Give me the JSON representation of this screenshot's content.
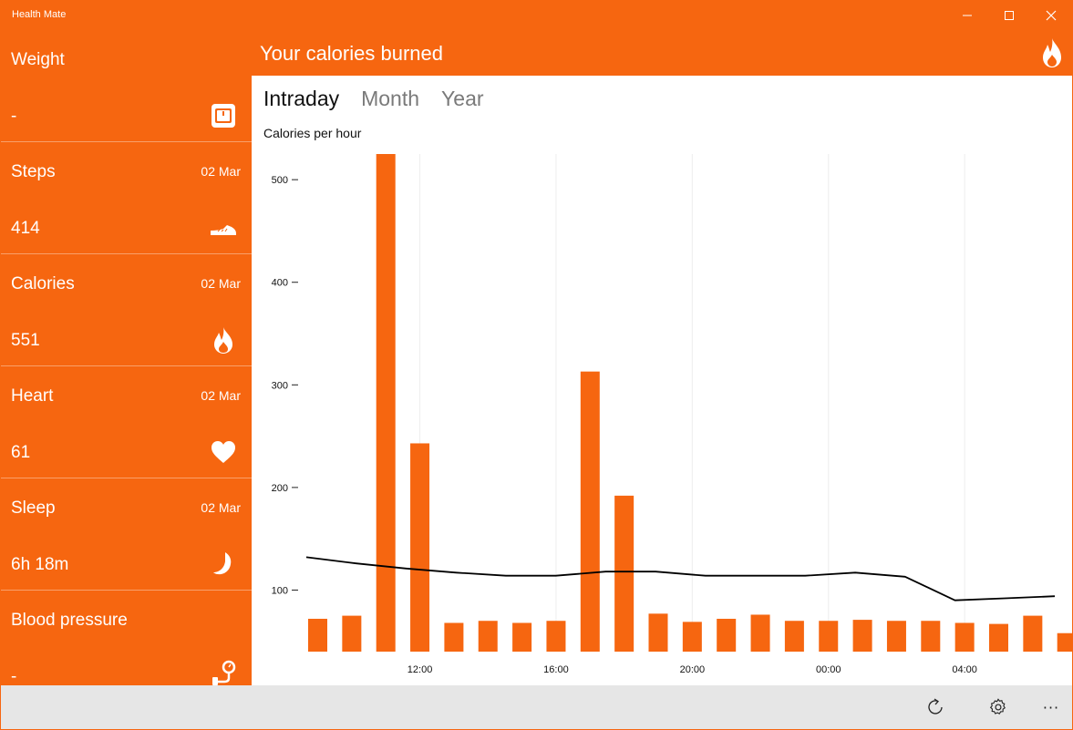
{
  "window": {
    "title": "Health Mate"
  },
  "sidebar": {
    "tiles": [
      {
        "key": "weight",
        "title": "Weight",
        "date": "",
        "value": "-",
        "icon": "scale-icon"
      },
      {
        "key": "steps",
        "title": "Steps",
        "date": "02 Mar",
        "value": "414",
        "icon": "shoe-icon"
      },
      {
        "key": "calories",
        "title": "Calories",
        "date": "02 Mar",
        "value": "551",
        "icon": "flame-icon"
      },
      {
        "key": "heart",
        "title": "Heart",
        "date": "02 Mar",
        "value": "61",
        "icon": "heart-icon"
      },
      {
        "key": "sleep",
        "title": "Sleep",
        "date": "02 Mar",
        "value": "6h 18m",
        "icon": "moon-icon"
      },
      {
        "key": "blood",
        "title": "Blood pressure",
        "date": "",
        "value": "-",
        "icon": "blood-pressure-icon"
      }
    ]
  },
  "header": {
    "title": "Your calories burned",
    "icon": "flame-icon"
  },
  "tabs": [
    {
      "label": "Intraday",
      "active": true
    },
    {
      "label": "Month",
      "active": false
    },
    {
      "label": "Year",
      "active": false
    }
  ],
  "chart_data": {
    "type": "bar",
    "title": "Calories per hour",
    "ylim": [
      40,
      525
    ],
    "yticks": [
      100,
      200,
      300,
      400,
      500
    ],
    "xtick_labels": [
      "12:00",
      "16:00",
      "20:00",
      "00:00",
      "04:00"
    ],
    "xtick_index": [
      3,
      7,
      11,
      15,
      19
    ],
    "values": [
      72,
      75,
      525,
      243,
      68,
      70,
      68,
      70,
      313,
      192,
      77,
      69,
      72,
      76,
      70,
      70,
      71,
      70,
      70,
      68,
      67,
      75,
      58
    ],
    "trend": [
      132,
      126,
      121,
      117,
      114,
      114,
      118,
      118,
      114,
      114,
      114,
      117,
      113,
      90,
      92,
      94
    ],
    "colors": {
      "bar": "#f66610",
      "trend": "#000000"
    },
    "grid": true
  },
  "bottombar": {
    "refresh_icon": "refresh-icon",
    "settings_icon": "gear-icon",
    "more_label": "···"
  }
}
